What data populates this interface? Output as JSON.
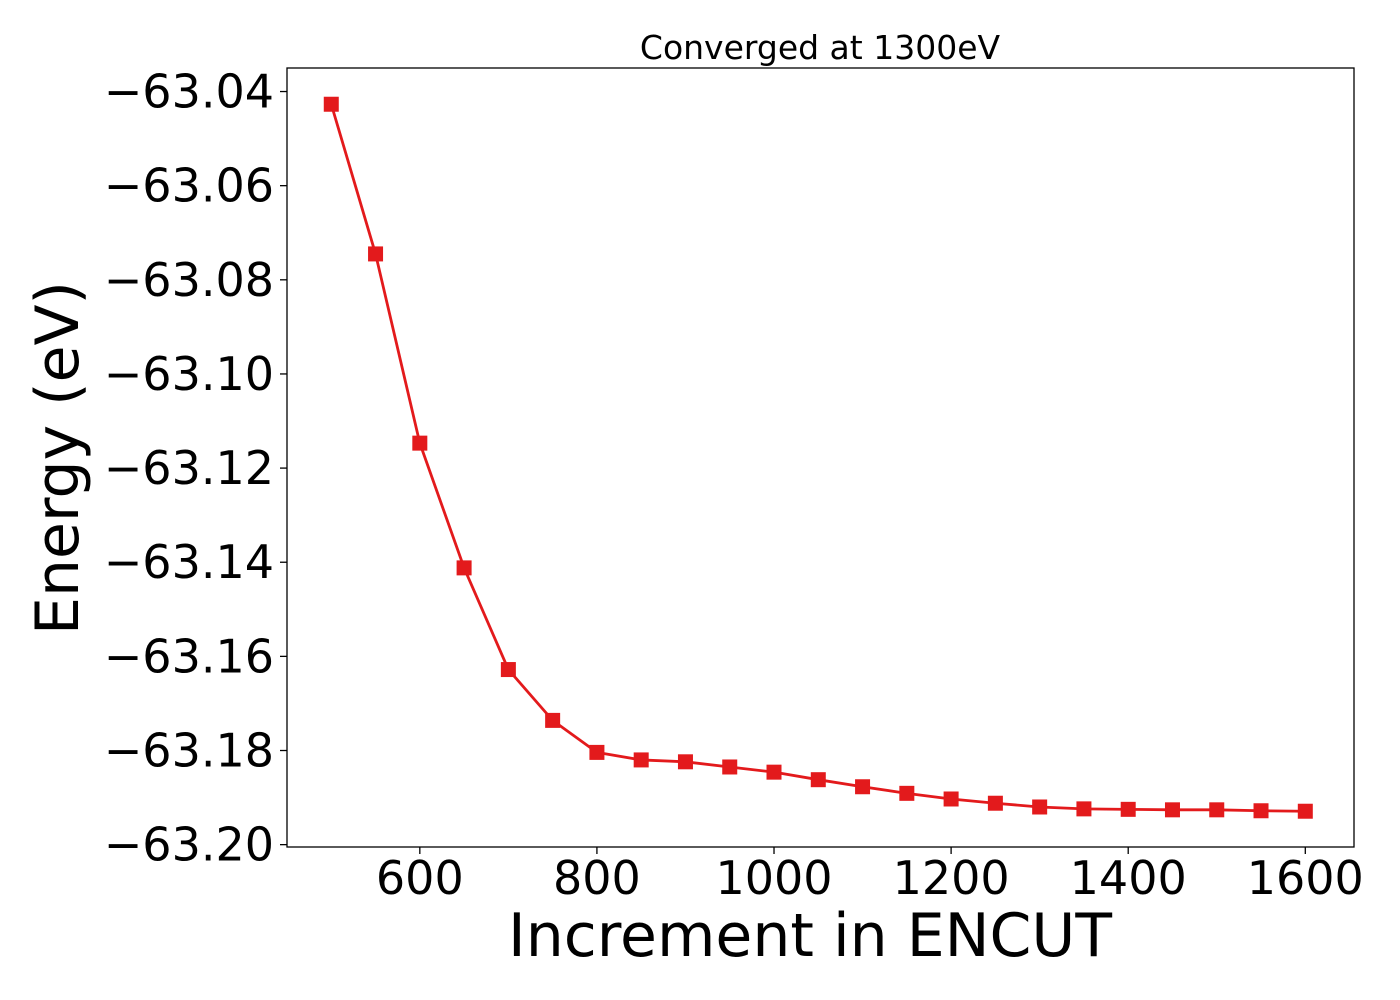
{
  "chart_data": {
    "type": "line",
    "title": "Converged at 1300eV",
    "xlabel": "Increment in ENCUT",
    "ylabel": "Energy (eV)",
    "xlim": [
      450,
      1655
    ],
    "ylim": [
      -63.2005,
      -63.035
    ],
    "xticks": [
      600,
      800,
      1000,
      1200,
      1400,
      1600
    ],
    "xtick_labels": [
      "600",
      "800",
      "1000",
      "1200",
      "1400",
      "1600"
    ],
    "yticks": [
      -63.04,
      -63.06,
      -63.08,
      -63.1,
      -63.12,
      -63.14,
      -63.16,
      -63.18,
      -63.2
    ],
    "ytick_labels": [
      "−63.04",
      "−63.06",
      "−63.08",
      "−63.10",
      "−63.12",
      "−63.14",
      "−63.16",
      "−63.18",
      "−63.20"
    ],
    "grid": false,
    "series": [
      {
        "color": "#e31a1c",
        "marker": "square",
        "x": [
          500,
          550,
          600,
          650,
          700,
          750,
          800,
          850,
          900,
          950,
          1000,
          1050,
          1100,
          1150,
          1200,
          1250,
          1300,
          1350,
          1400,
          1450,
          1500,
          1550,
          1600
        ],
        "y": [
          -63.0427,
          -63.0745,
          -63.1147,
          -63.1412,
          -63.1628,
          -63.1736,
          -63.1804,
          -63.182,
          -63.1824,
          -63.1835,
          -63.1846,
          -63.1862,
          -63.1877,
          -63.1891,
          -63.1903,
          -63.1912,
          -63.192,
          -63.1924,
          -63.1925,
          -63.1926,
          -63.1926,
          -63.1928,
          -63.1929
        ]
      }
    ]
  }
}
